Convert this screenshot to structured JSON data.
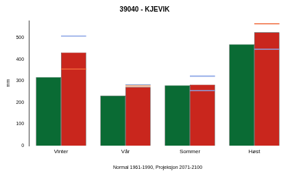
{
  "chart_data": {
    "type": "bar",
    "title": "39040 - KJEVIK",
    "x_label": "Normal 1961-1990, Projeksjon 2071-2100",
    "y_label": "mm",
    "categories": [
      "Vinter",
      "Vår",
      "Sommer",
      "Høst"
    ],
    "series": [
      {
        "color": "#0a6b34",
        "values": [
          318,
          232,
          280,
          470
        ]
      },
      {
        "color": "#c9261d",
        "values": [
          432,
          272,
          283,
          525
        ]
      },
      {
        "marker": "line",
        "colors": [
          "#8aa4e6",
          "#9ab0d8",
          "#8aa4e6",
          "#f06a3c"
        ],
        "values": [
          508,
          283,
          322,
          565
        ]
      },
      {
        "marker": "line",
        "colors": [
          "#f06a3c",
          "#f0a070",
          "#8aa4e6",
          "#8aa4e6"
        ],
        "values": [
          355,
          277,
          255,
          447
        ]
      }
    ],
    "ylim": [
      0,
      580
    ],
    "yticks": [
      0,
      100,
      200,
      300,
      400,
      500
    ],
    "grid": false
  }
}
